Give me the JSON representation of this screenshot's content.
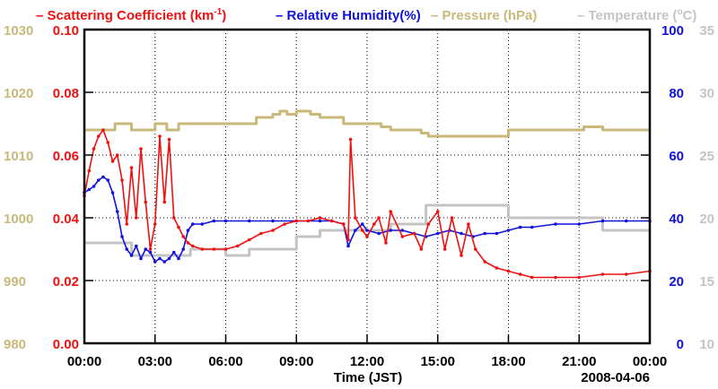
{
  "chart_data": {
    "type": "line",
    "date_label": "2008-04-06",
    "xlabel": "Time (JST)",
    "x_ticks": [
      "00:00",
      "03:00",
      "06:00",
      "09:00",
      "12:00",
      "15:00",
      "18:00",
      "21:00",
      "00:00"
    ],
    "xlim_hours": [
      0,
      24
    ],
    "colors": {
      "scattering": "#ee1111",
      "humidity": "#1111dd",
      "pressure": "#c8b97a",
      "temperature": "#c4c4c4",
      "frame": "#000000",
      "grid": "#000000"
    },
    "legend": [
      {
        "label": "– Scattering Coefficient (km",
        "superscript": "-1",
        "suffix": ")",
        "color_key": "scattering"
      },
      {
        "label": "– Relative Humidity(%)",
        "color_key": "humidity"
      },
      {
        "label": "– Pressure (hPa)",
        "color_key": "pressure"
      },
      {
        "label": "– Temperature (",
        "superscript": "o",
        "suffix": "C)",
        "color_key": "temperature"
      }
    ],
    "axes": {
      "scattering": {
        "ticks": [
          "0.00",
          "0.02",
          "0.04",
          "0.06",
          "0.08",
          "0.10"
        ],
        "range": [
          0,
          0.1
        ]
      },
      "pressure": {
        "ticks": [
          "980",
          "990",
          "1000",
          "1010",
          "1020",
          "1030"
        ],
        "range": [
          980,
          1030
        ]
      },
      "humidity": {
        "ticks": [
          "0",
          "20",
          "40",
          "60",
          "80",
          "100"
        ],
        "range": [
          0,
          100
        ]
      },
      "temperature": {
        "ticks": [
          "10",
          "15",
          "20",
          "25",
          "30",
          "35"
        ],
        "range": [
          10,
          35
        ]
      }
    },
    "series": [
      {
        "name": "Pressure",
        "unit": "hPa",
        "axis": "pressure",
        "step": true,
        "x": [
          0,
          1.0,
          1.3,
          2.0,
          3.0,
          3.5,
          4.0,
          7.0,
          7.3,
          7.6,
          8.0,
          8.3,
          8.6,
          9.0,
          9.6,
          10.0,
          11.0,
          12.0,
          12.6,
          13.0,
          14.0,
          14.3,
          14.6,
          15.0,
          16.0,
          17.0,
          18.0,
          19.0,
          20.0,
          21.0,
          21.2,
          22.0,
          24.0
        ],
        "values": [
          1014,
          1014,
          1015,
          1014,
          1015,
          1014,
          1015,
          1015,
          1016,
          1016,
          1016.5,
          1017,
          1016.5,
          1017,
          1016.5,
          1016,
          1015,
          1015,
          1014.5,
          1014,
          1014,
          1013.5,
          1013,
          1013,
          1013,
          1013,
          1014,
          1014,
          1014,
          1014,
          1014.5,
          1014,
          1014
        ]
      },
      {
        "name": "Temperature",
        "unit": "C",
        "axis": "temperature",
        "step": true,
        "x": [
          0,
          1.5,
          2.0,
          4.0,
          4.5,
          6.0,
          7.0,
          9.0,
          10.0,
          11.0,
          12.0,
          13.0,
          14.0,
          14.5,
          16.0,
          17.0,
          18.0,
          19.0,
          20.0,
          22.0,
          23.0,
          24.0
        ],
        "values": [
          18,
          18,
          17,
          17,
          17.5,
          17,
          17.5,
          18.5,
          19,
          19,
          19,
          19.5,
          19.5,
          21,
          21,
          21,
          20,
          20,
          20,
          19,
          19,
          19
        ]
      },
      {
        "name": "Relative Humidity",
        "unit": "%",
        "axis": "humidity",
        "x": [
          0,
          0.2,
          0.4,
          0.6,
          0.8,
          1.0,
          1.2,
          1.4,
          1.6,
          1.8,
          2.0,
          2.2,
          2.4,
          2.6,
          2.8,
          3.0,
          3.2,
          3.4,
          3.6,
          3.8,
          4.0,
          4.2,
          4.4,
          4.6,
          5.0,
          5.5,
          6.0,
          7.0,
          8.0,
          9.0,
          10.0,
          10.5,
          11.0,
          11.2,
          11.5,
          11.8,
          12.0,
          12.5,
          13.0,
          13.5,
          14.0,
          14.5,
          15.0,
          15.5,
          16.0,
          16.5,
          17.0,
          17.5,
          18.0,
          18.5,
          19.0,
          20.0,
          21.0,
          22.0,
          23.0,
          24.0
        ],
        "values": [
          48,
          49,
          50,
          52,
          53,
          52,
          48,
          42,
          34,
          30,
          28,
          31,
          27,
          30,
          29,
          26,
          27,
          26,
          27,
          29,
          27,
          30,
          36,
          38,
          38,
          39,
          39,
          39,
          39,
          39,
          39,
          39,
          38,
          31,
          36,
          38,
          36,
          35,
          36,
          36,
          35,
          34,
          35,
          36,
          35,
          34,
          35,
          35,
          36,
          37,
          37,
          38,
          38,
          39,
          39,
          39
        ]
      },
      {
        "name": "Scattering Coefficient",
        "unit": "km-1",
        "axis": "scattering",
        "x": [
          0,
          0.2,
          0.4,
          0.6,
          0.8,
          1.0,
          1.2,
          1.4,
          1.6,
          1.8,
          2.0,
          2.2,
          2.4,
          2.6,
          2.8,
          3.0,
          3.2,
          3.4,
          3.6,
          3.8,
          4.0,
          4.2,
          4.4,
          4.6,
          5.0,
          5.5,
          6.0,
          6.5,
          7.0,
          7.5,
          8.0,
          8.5,
          9.0,
          9.5,
          10.0,
          10.5,
          11.0,
          11.2,
          11.3,
          11.5,
          11.8,
          12.0,
          12.3,
          12.5,
          12.8,
          13.0,
          13.5,
          14.0,
          14.3,
          14.6,
          15.0,
          15.3,
          15.6,
          16.0,
          16.3,
          16.6,
          17.0,
          17.5,
          18.0,
          18.5,
          19.0,
          20.0,
          21.0,
          22.0,
          23.0,
          24.0
        ],
        "values": [
          0.047,
          0.055,
          0.062,
          0.066,
          0.068,
          0.064,
          0.058,
          0.06,
          0.052,
          0.038,
          0.056,
          0.04,
          0.062,
          0.045,
          0.03,
          0.038,
          0.066,
          0.045,
          0.065,
          0.04,
          0.037,
          0.034,
          0.032,
          0.031,
          0.03,
          0.03,
          0.03,
          0.031,
          0.033,
          0.035,
          0.036,
          0.038,
          0.039,
          0.039,
          0.04,
          0.039,
          0.038,
          0.033,
          0.065,
          0.04,
          0.036,
          0.034,
          0.038,
          0.04,
          0.032,
          0.042,
          0.034,
          0.035,
          0.03,
          0.038,
          0.042,
          0.03,
          0.04,
          0.028,
          0.038,
          0.03,
          0.026,
          0.024,
          0.023,
          0.022,
          0.021,
          0.021,
          0.021,
          0.022,
          0.022,
          0.023
        ]
      }
    ]
  }
}
